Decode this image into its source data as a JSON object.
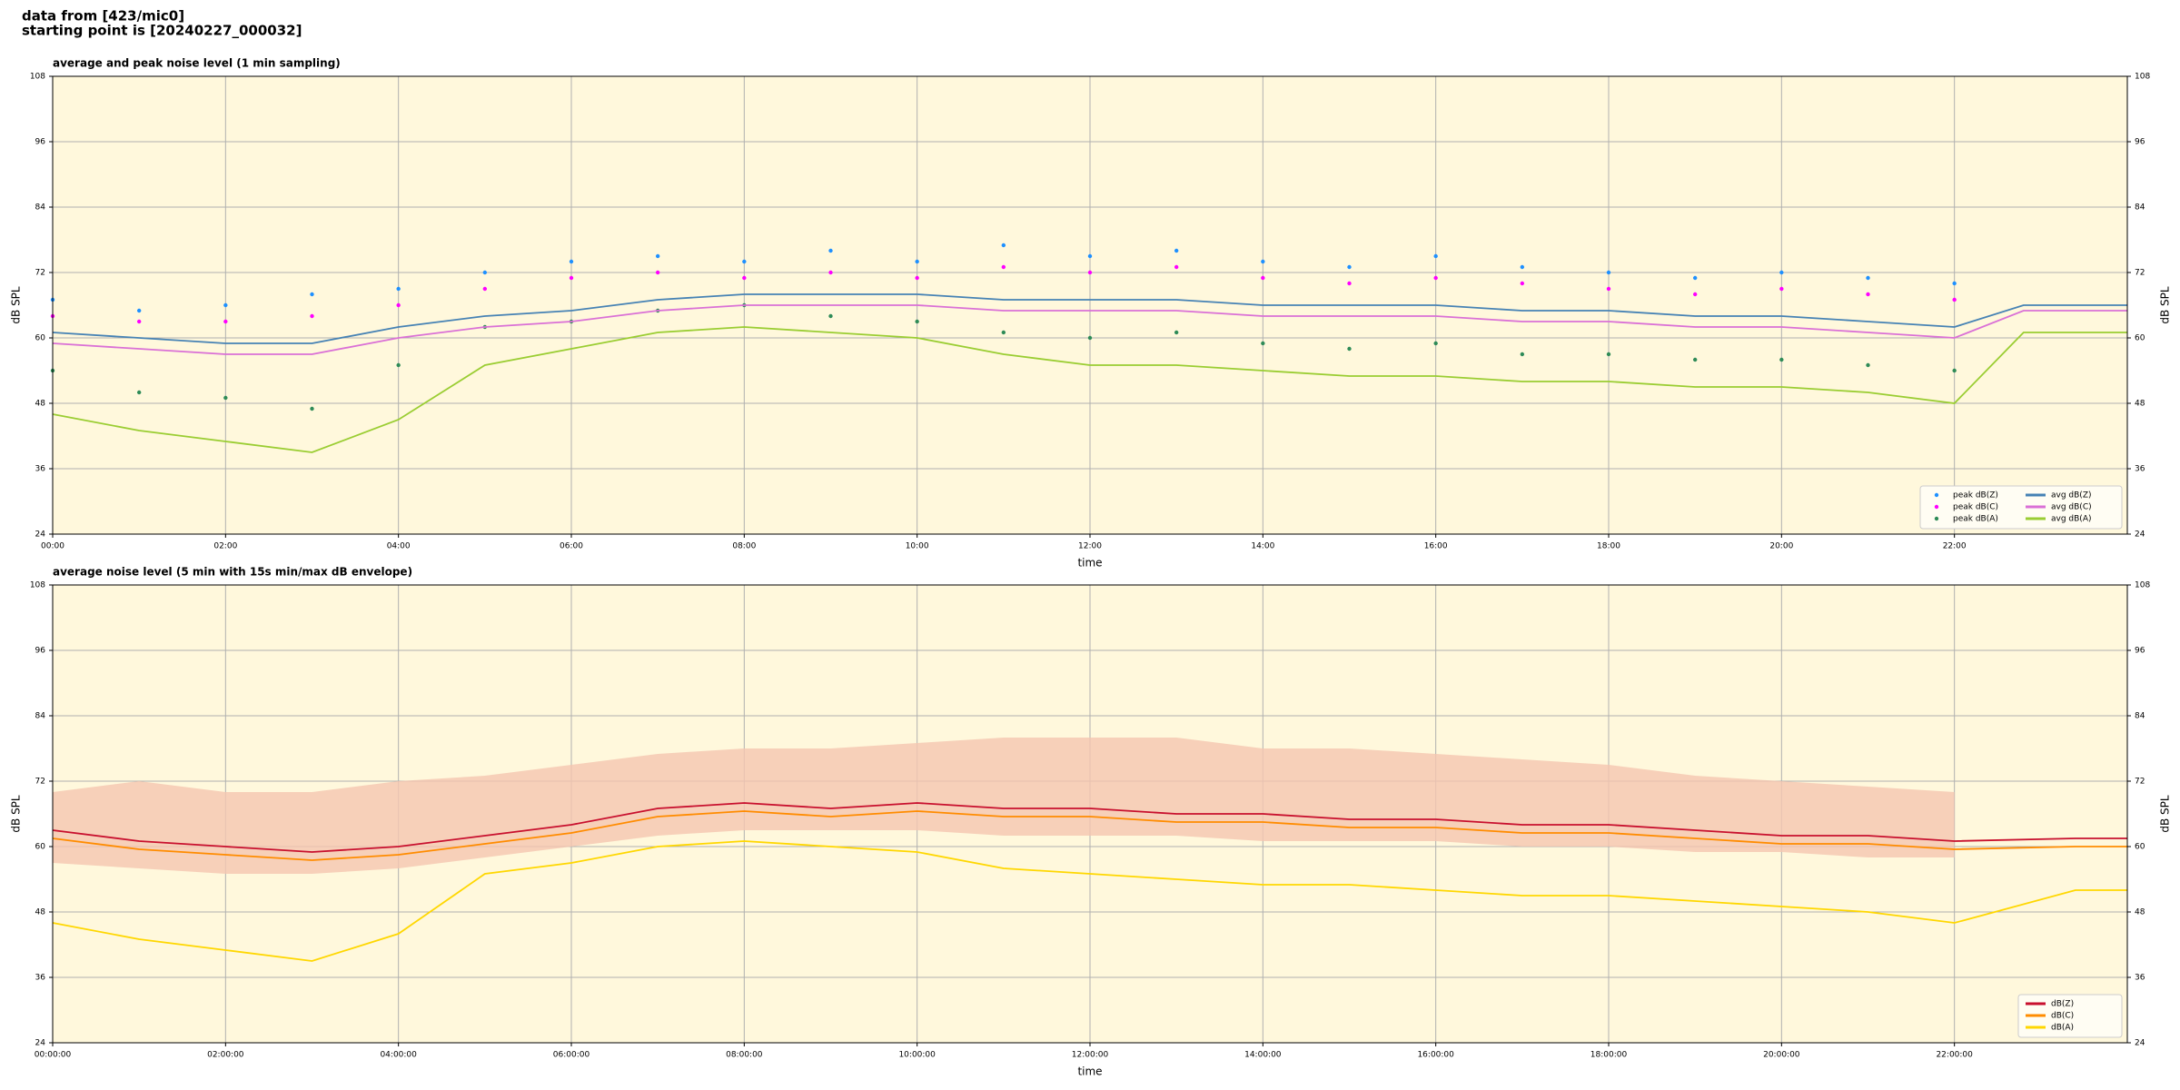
{
  "header": {
    "line1": "data from [423/mic0]",
    "line2": "starting point is [20240227_000032]"
  },
  "chart_data": [
    {
      "type": "line",
      "title": "average and peak noise level (1 min sampling)",
      "x_label": "time",
      "y_label": "dB SPL",
      "background": "#fff8dc",
      "grid": true,
      "legend": "lower right",
      "legend_columns": 2,
      "x": [
        0,
        1,
        2,
        3,
        4,
        5,
        6,
        7,
        8,
        9,
        10,
        11,
        12,
        13,
        14,
        15,
        16,
        17,
        18,
        19,
        20,
        21,
        22,
        22.8,
        24
      ],
      "xlim": [
        0,
        24
      ],
      "xticks": [
        {
          "value": 0,
          "label": "00:00"
        },
        {
          "value": 2,
          "label": "02:00"
        },
        {
          "value": 4,
          "label": "04:00"
        },
        {
          "value": 6,
          "label": "06:00"
        },
        {
          "value": 8,
          "label": "08:00"
        },
        {
          "value": 10,
          "label": "10:00"
        },
        {
          "value": 12,
          "label": "12:00"
        },
        {
          "value": 14,
          "label": "14:00"
        },
        {
          "value": 16,
          "label": "16:00"
        },
        {
          "value": 18,
          "label": "18:00"
        },
        {
          "value": 20,
          "label": "20:00"
        },
        {
          "value": 22,
          "label": "22:00"
        }
      ],
      "ylim": [
        24,
        108
      ],
      "yticks": [
        24,
        36,
        48,
        60,
        72,
        84,
        96,
        108
      ],
      "series": [
        {
          "name": "peak dB(Z)",
          "kind": "scatter",
          "color": "#1e90ff",
          "values": [
            67,
            65,
            66,
            68,
            69,
            72,
            74,
            75,
            74,
            76,
            74,
            77,
            75,
            76,
            74,
            73,
            75,
            73,
            72,
            71,
            72,
            71,
            70,
            null,
            null
          ]
        },
        {
          "name": "peak dB(C)",
          "kind": "scatter",
          "color": "#ff00ff",
          "values": [
            64,
            63,
            63,
            64,
            66,
            69,
            71,
            72,
            71,
            72,
            71,
            73,
            72,
            73,
            71,
            70,
            71,
            70,
            69,
            68,
            69,
            68,
            67,
            null,
            null
          ]
        },
        {
          "name": "peak dB(A)",
          "kind": "scatter",
          "color": "#2e8b57",
          "values": [
            54,
            50,
            49,
            47,
            55,
            62,
            63,
            65,
            66,
            64,
            63,
            61,
            60,
            61,
            59,
            58,
            59,
            57,
            57,
            56,
            56,
            55,
            54,
            null,
            null
          ]
        },
        {
          "name": "avg dB(Z)",
          "kind": "line",
          "color": "#4682b4",
          "values": [
            61,
            60,
            59,
            59,
            62,
            64,
            65,
            67,
            68,
            68,
            68,
            67,
            67,
            67,
            66,
            66,
            66,
            65,
            65,
            64,
            64,
            63,
            62,
            66,
            66
          ]
        },
        {
          "name": "avg dB(C)",
          "kind": "line",
          "color": "#da70d6",
          "values": [
            59,
            58,
            57,
            57,
            60,
            62,
            63,
            65,
            66,
            66,
            66,
            65,
            65,
            65,
            64,
            64,
            64,
            63,
            63,
            62,
            62,
            61,
            60,
            65,
            65
          ]
        },
        {
          "name": "avg dB(A)",
          "kind": "line",
          "color": "#9acd32",
          "values": [
            46,
            43,
            41,
            39,
            45,
            55,
            58,
            61,
            62,
            61,
            60,
            57,
            55,
            55,
            54,
            53,
            53,
            52,
            52,
            51,
            51,
            50,
            48,
            61,
            61
          ]
        }
      ]
    },
    {
      "type": "line",
      "title": "average noise level (5 min with 15s min/max dB envelope)",
      "x_label": "time",
      "y_label": "dB SPL",
      "background": "#fff8dc",
      "grid": true,
      "legend": "lower right",
      "legend_columns": 1,
      "x": [
        0,
        1,
        2,
        3,
        4,
        5,
        6,
        7,
        8,
        9,
        10,
        11,
        12,
        13,
        14,
        15,
        16,
        17,
        18,
        19,
        20,
        21,
        22,
        23.4,
        24
      ],
      "xlim": [
        0,
        24
      ],
      "xticks": [
        {
          "value": 0,
          "label": "00:00:00"
        },
        {
          "value": 2,
          "label": "02:00:00"
        },
        {
          "value": 4,
          "label": "04:00:00"
        },
        {
          "value": 6,
          "label": "06:00:00"
        },
        {
          "value": 8,
          "label": "08:00:00"
        },
        {
          "value": 10,
          "label": "10:00:00"
        },
        {
          "value": 12,
          "label": "12:00:00"
        },
        {
          "value": 14,
          "label": "14:00:00"
        },
        {
          "value": 16,
          "label": "16:00:00"
        },
        {
          "value": 18,
          "label": "18:00:00"
        },
        {
          "value": 20,
          "label": "20:00:00"
        },
        {
          "value": 22,
          "label": "22:00:00"
        }
      ],
      "ylim": [
        24,
        108
      ],
      "yticks": [
        24,
        36,
        48,
        60,
        72,
        84,
        96,
        108
      ],
      "envelope": {
        "color": "#f5c6b0",
        "min": [
          57,
          56,
          55,
          55,
          56,
          58,
          60,
          62,
          63,
          63,
          63,
          62,
          62,
          62,
          61,
          61,
          61,
          60,
          60,
          59,
          59,
          58,
          58,
          null,
          null
        ],
        "max": [
          70,
          72,
          70,
          70,
          72,
          73,
          75,
          77,
          78,
          78,
          79,
          80,
          80,
          80,
          78,
          78,
          77,
          76,
          75,
          73,
          72,
          71,
          70,
          null,
          null
        ]
      },
      "series": [
        {
          "name": "dB(Z)",
          "kind": "line",
          "color": "#c8102e",
          "values": [
            63,
            61,
            60,
            59,
            60,
            62,
            64,
            67,
            68,
            67,
            68,
            67,
            67,
            66,
            66,
            65,
            65,
            64,
            64,
            63,
            62,
            62,
            61,
            61.5,
            61.5
          ]
        },
        {
          "name": "dB(C)",
          "kind": "line",
          "color": "#ff8c00",
          "values": [
            61.5,
            59.5,
            58.5,
            57.5,
            58.5,
            60.5,
            62.5,
            65.5,
            66.5,
            65.5,
            66.5,
            65.5,
            65.5,
            64.5,
            64.5,
            63.5,
            63.5,
            62.5,
            62.5,
            61.5,
            60.5,
            60.5,
            59.5,
            60,
            60
          ]
        },
        {
          "name": "dB(A)",
          "kind": "line",
          "color": "#ffd700",
          "values": [
            46,
            43,
            41,
            39,
            44,
            55,
            57,
            60,
            61,
            60,
            59,
            56,
            55,
            54,
            53,
            53,
            52,
            51,
            51,
            50,
            49,
            48,
            46,
            52,
            52
          ]
        }
      ]
    }
  ]
}
